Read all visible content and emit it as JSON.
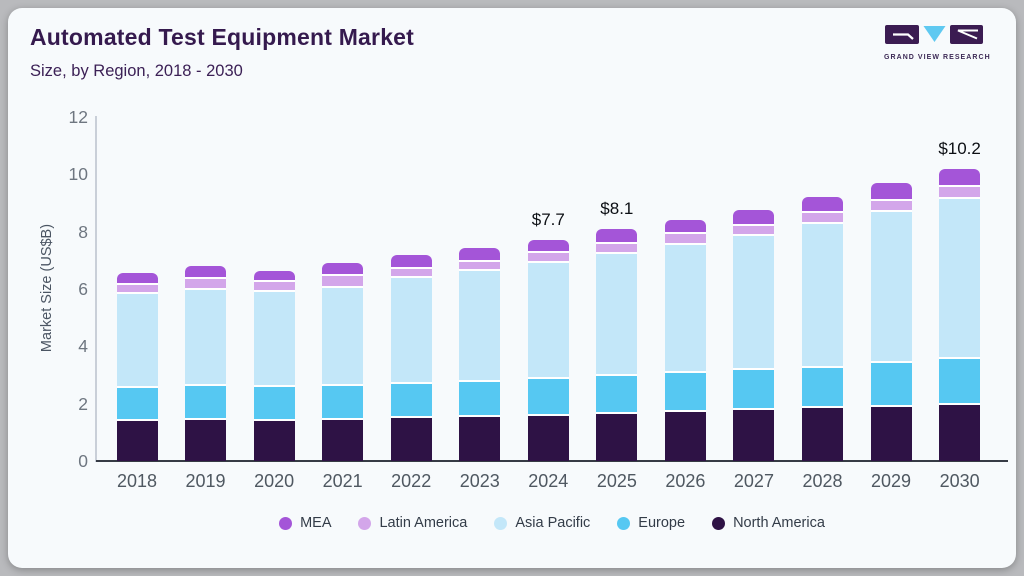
{
  "header": {
    "title": "Automated Test Equipment Market",
    "subtitle": "Size, by Region, 2018 - 2030"
  },
  "logo": {
    "brand": "GRAND VIEW RESEARCH",
    "colors": {
      "block": "#3b1c52",
      "triangle": "#5fc9f1"
    }
  },
  "chart_data": {
    "type": "bar",
    "stacked": true,
    "title": "Automated Test Equipment Market",
    "subtitle": "Size, by Region, 2018 - 2030",
    "ylabel": "Market Size (US$B)",
    "xlabel": "",
    "ylim": [
      0,
      12
    ],
    "yticks": [
      0,
      2,
      4,
      6,
      8,
      10,
      12
    ],
    "grid": false,
    "legend_position": "bottom",
    "categories": [
      "2018",
      "2019",
      "2020",
      "2021",
      "2022",
      "2023",
      "2024",
      "2025",
      "2026",
      "2027",
      "2028",
      "2029",
      "2030"
    ],
    "series": [
      {
        "name": "North America",
        "color": "#2e1245",
        "values": [
          1.45,
          1.5,
          1.45,
          1.5,
          1.57,
          1.62,
          1.65,
          1.72,
          1.78,
          1.85,
          1.92,
          1.97,
          2.04
        ]
      },
      {
        "name": "Europe",
        "color": "#56c8f2",
        "values": [
          1.18,
          1.2,
          1.2,
          1.2,
          1.17,
          1.2,
          1.28,
          1.32,
          1.35,
          1.38,
          1.38,
          1.52,
          1.58
        ]
      },
      {
        "name": "Asia Pacific",
        "color": "#c3e7f9",
        "values": [
          3.28,
          3.35,
          3.32,
          3.42,
          3.7,
          3.88,
          4.05,
          4.24,
          4.49,
          4.7,
          5.05,
          5.27,
          5.6
        ]
      },
      {
        "name": "Latin America",
        "color": "#d3a6ea",
        "values": [
          0.3,
          0.36,
          0.34,
          0.4,
          0.33,
          0.32,
          0.33,
          0.36,
          0.37,
          0.35,
          0.38,
          0.39,
          0.4
        ]
      },
      {
        "name": "MEA",
        "color": "#a455d8",
        "values": [
          0.36,
          0.4,
          0.33,
          0.4,
          0.42,
          0.4,
          0.39,
          0.46,
          0.42,
          0.47,
          0.47,
          0.54,
          0.58
        ]
      }
    ],
    "legend_order": [
      "MEA",
      "Latin America",
      "Asia Pacific",
      "Europe",
      "North America"
    ],
    "annotations": [
      {
        "category": "2024",
        "text": "$7.7"
      },
      {
        "category": "2025",
        "text": "$8.1"
      },
      {
        "category": "2030",
        "text": "$10.2"
      }
    ]
  }
}
